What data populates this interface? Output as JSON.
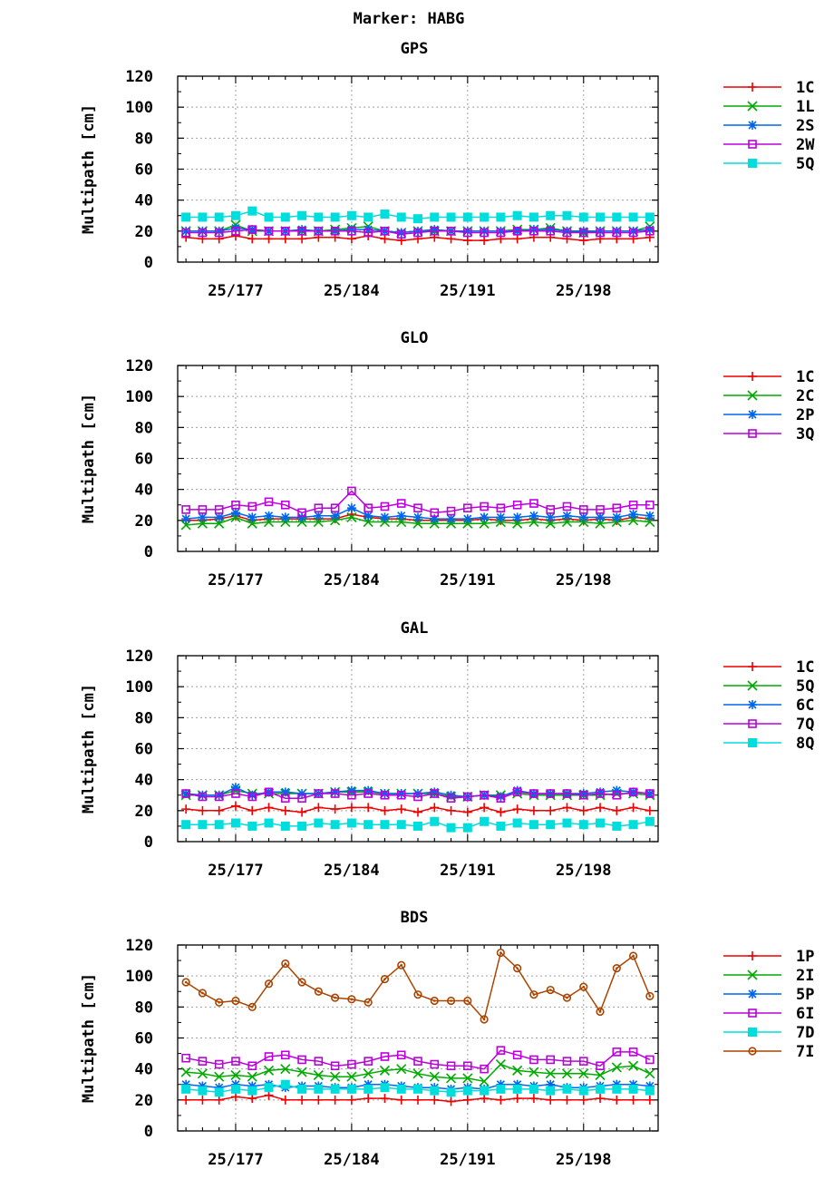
{
  "title": "Marker: HABG",
  "colors": {
    "1C": "#ee0000",
    "1P": "#ee0000",
    "1L": "#00aa00",
    "2C": "#00aa00",
    "5Q": "#00aa00",
    "2I": "#00aa00",
    "2S": "#0066ee",
    "2P": "#0066ee",
    "6C": "#0066ee",
    "5P": "#0066ee",
    "2W": "#bb00dd",
    "3Q": "#bb00dd",
    "7Q": "#bb00dd",
    "6I": "#bb00dd",
    "cyan": "#00dddd",
    "brown": "#aa4400"
  },
  "chart_data": [
    {
      "type": "line",
      "title": "GPS",
      "ylabel": "Multipath [cm]",
      "ylim": [
        0,
        120
      ],
      "yticks": [
        0,
        20,
        40,
        60,
        80,
        100,
        120
      ],
      "xlim": [
        173.5,
        202.5
      ],
      "xticks": [
        177,
        184,
        191,
        198
      ],
      "xtick_labels": [
        "25/177",
        "25/184",
        "25/191",
        "25/198"
      ],
      "grid": true,
      "legend": "right",
      "x": [
        174,
        175,
        176,
        177,
        178,
        179,
        180,
        181,
        182,
        183,
        184,
        185,
        186,
        187,
        188,
        189,
        190,
        191,
        192,
        193,
        194,
        195,
        196,
        197,
        198,
        199,
        200,
        201,
        202
      ],
      "series": [
        {
          "name": "1C",
          "color": "#ee0000",
          "marker": "plus",
          "values": [
            16,
            15,
            15,
            17,
            15,
            15,
            15,
            15,
            16,
            16,
            15,
            17,
            15,
            14,
            15,
            16,
            15,
            14,
            14,
            15,
            15,
            16,
            16,
            15,
            14,
            15,
            15,
            15,
            16
          ]
        },
        {
          "name": "1L",
          "color": "#00aa00",
          "marker": "x",
          "values": [
            20,
            20,
            20,
            24,
            20,
            20,
            20,
            20,
            20,
            21,
            22,
            23,
            20,
            19,
            20,
            20,
            20,
            20,
            20,
            20,
            21,
            21,
            22,
            20,
            19,
            20,
            20,
            20,
            23
          ]
        },
        {
          "name": "2S",
          "color": "#0066ee",
          "marker": "star",
          "values": [
            20,
            20,
            20,
            22,
            21,
            20,
            20,
            21,
            20,
            20,
            21,
            21,
            20,
            19,
            20,
            21,
            20,
            20,
            20,
            20,
            20,
            21,
            21,
            20,
            20,
            20,
            20,
            20,
            21
          ]
        },
        {
          "name": "2W",
          "color": "#bb00dd",
          "marker": "square",
          "values": [
            19,
            19,
            19,
            20,
            21,
            20,
            20,
            20,
            20,
            20,
            20,
            19,
            20,
            18,
            19,
            20,
            20,
            19,
            19,
            19,
            20,
            20,
            20,
            19,
            19,
            19,
            19,
            19,
            20
          ]
        },
        {
          "name": "5Q",
          "color": "#00dddd",
          "marker": "fsquare",
          "values": [
            29,
            29,
            29,
            30,
            33,
            29,
            29,
            30,
            29,
            29,
            30,
            29,
            31,
            29,
            28,
            29,
            29,
            29,
            29,
            29,
            30,
            29,
            30,
            30,
            29,
            29,
            29,
            29,
            29
          ]
        }
      ]
    },
    {
      "type": "line",
      "title": "GLO",
      "ylabel": "Multipath [cm]",
      "ylim": [
        0,
        120
      ],
      "yticks": [
        0,
        20,
        40,
        60,
        80,
        100,
        120
      ],
      "xlim": [
        173.5,
        202.5
      ],
      "xticks": [
        177,
        184,
        191,
        198
      ],
      "xtick_labels": [
        "25/177",
        "25/184",
        "25/191",
        "25/198"
      ],
      "grid": true,
      "legend": "right",
      "x": [
        174,
        175,
        176,
        177,
        178,
        179,
        180,
        181,
        182,
        183,
        184,
        185,
        186,
        187,
        188,
        189,
        190,
        191,
        192,
        193,
        194,
        195,
        196,
        197,
        198,
        199,
        200,
        201,
        202
      ],
      "series": [
        {
          "name": "1C",
          "color": "#ee0000",
          "marker": "plus",
          "values": [
            20,
            20,
            21,
            23,
            20,
            21,
            21,
            21,
            21,
            21,
            24,
            22,
            21,
            21,
            20,
            20,
            20,
            20,
            21,
            20,
            20,
            21,
            20,
            21,
            20,
            21,
            20,
            22,
            21
          ]
        },
        {
          "name": "2C",
          "color": "#00aa00",
          "marker": "x",
          "values": [
            17,
            18,
            18,
            22,
            18,
            19,
            19,
            19,
            19,
            20,
            22,
            19,
            19,
            19,
            18,
            18,
            18,
            18,
            18,
            19,
            18,
            19,
            18,
            19,
            19,
            18,
            19,
            20,
            19
          ]
        },
        {
          "name": "2P",
          "color": "#0066ee",
          "marker": "star",
          "values": [
            21,
            22,
            22,
            25,
            22,
            23,
            22,
            22,
            23,
            23,
            28,
            23,
            22,
            23,
            22,
            21,
            21,
            21,
            22,
            22,
            22,
            23,
            22,
            23,
            22,
            22,
            22,
            24,
            23
          ]
        },
        {
          "name": "3Q",
          "color": "#bb00dd",
          "marker": "square",
          "values": [
            27,
            27,
            27,
            30,
            29,
            32,
            30,
            25,
            28,
            28,
            39,
            28,
            29,
            31,
            28,
            25,
            26,
            28,
            29,
            28,
            30,
            31,
            27,
            29,
            27,
            27,
            28,
            30,
            30
          ]
        }
      ]
    },
    {
      "type": "line",
      "title": "GAL",
      "ylabel": "Multipath [cm]",
      "ylim": [
        0,
        120
      ],
      "yticks": [
        0,
        20,
        40,
        60,
        80,
        100,
        120
      ],
      "xlim": [
        173.5,
        202.5
      ],
      "xticks": [
        177,
        184,
        191,
        198
      ],
      "xtick_labels": [
        "25/177",
        "25/184",
        "25/191",
        "25/198"
      ],
      "grid": true,
      "legend": "right",
      "x": [
        174,
        175,
        176,
        177,
        178,
        179,
        180,
        181,
        182,
        183,
        184,
        185,
        186,
        187,
        188,
        189,
        190,
        191,
        192,
        193,
        194,
        195,
        196,
        197,
        198,
        199,
        200,
        201,
        202
      ],
      "series": [
        {
          "name": "1C",
          "color": "#ee0000",
          "marker": "plus",
          "values": [
            21,
            20,
            20,
            23,
            20,
            22,
            20,
            19,
            22,
            21,
            22,
            22,
            20,
            21,
            19,
            22,
            20,
            19,
            22,
            19,
            21,
            20,
            20,
            22,
            20,
            22,
            20,
            22,
            20
          ]
        },
        {
          "name": "5Q",
          "color": "#00aa00",
          "marker": "x",
          "values": [
            30,
            30,
            30,
            33,
            31,
            31,
            31,
            31,
            31,
            32,
            32,
            32,
            31,
            31,
            31,
            31,
            29,
            29,
            30,
            30,
            31,
            30,
            30,
            30,
            30,
            30,
            31,
            31,
            30
          ]
        },
        {
          "name": "6C",
          "color": "#0066ee",
          "marker": "star",
          "values": [
            31,
            30,
            30,
            35,
            30,
            32,
            32,
            31,
            31,
            32,
            33,
            33,
            31,
            31,
            31,
            32,
            30,
            29,
            30,
            29,
            33,
            31,
            31,
            31,
            31,
            32,
            33,
            32,
            31
          ]
        },
        {
          "name": "7Q",
          "color": "#bb00dd",
          "marker": "square",
          "values": [
            31,
            29,
            29,
            31,
            29,
            32,
            28,
            28,
            31,
            31,
            30,
            31,
            30,
            30,
            29,
            31,
            28,
            29,
            30,
            28,
            32,
            31,
            31,
            31,
            30,
            31,
            30,
            32,
            31
          ]
        },
        {
          "name": "8Q",
          "color": "#00dddd",
          "marker": "fsquare",
          "values": [
            11,
            11,
            11,
            12,
            10,
            12,
            10,
            10,
            12,
            11,
            12,
            11,
            11,
            11,
            10,
            13,
            9,
            9,
            13,
            10,
            12,
            11,
            11,
            12,
            11,
            12,
            10,
            11,
            13
          ]
        }
      ]
    },
    {
      "type": "line",
      "title": "BDS",
      "ylabel": "Multipath [cm]",
      "ylim": [
        0,
        120
      ],
      "yticks": [
        0,
        20,
        40,
        60,
        80,
        100,
        120
      ],
      "xlim": [
        173.5,
        202.5
      ],
      "xticks": [
        177,
        184,
        191,
        198
      ],
      "xtick_labels": [
        "25/177",
        "25/184",
        "25/191",
        "25/198"
      ],
      "grid": true,
      "legend": "right",
      "x": [
        174,
        175,
        176,
        177,
        178,
        179,
        180,
        181,
        182,
        183,
        184,
        185,
        186,
        187,
        188,
        189,
        190,
        191,
        192,
        193,
        194,
        195,
        196,
        197,
        198,
        199,
        200,
        201,
        202
      ],
      "series": [
        {
          "name": "1P",
          "color": "#ee0000",
          "marker": "plus",
          "values": [
            20,
            20,
            20,
            22,
            21,
            23,
            20,
            20,
            20,
            20,
            20,
            21,
            21,
            20,
            20,
            20,
            19,
            20,
            21,
            20,
            21,
            21,
            20,
            20,
            20,
            21,
            20,
            20,
            20
          ]
        },
        {
          "name": "2I",
          "color": "#00aa00",
          "marker": "x",
          "values": [
            38,
            37,
            35,
            36,
            35,
            39,
            40,
            38,
            36,
            35,
            35,
            37,
            39,
            40,
            37,
            35,
            34,
            34,
            32,
            43,
            39,
            38,
            37,
            37,
            37,
            36,
            41,
            42,
            37
          ]
        },
        {
          "name": "5P",
          "color": "#0066ee",
          "marker": "star",
          "values": [
            30,
            29,
            28,
            30,
            29,
            30,
            28,
            29,
            29,
            28,
            28,
            30,
            30,
            29,
            28,
            28,
            27,
            28,
            27,
            30,
            30,
            29,
            30,
            28,
            28,
            29,
            30,
            30,
            29
          ]
        },
        {
          "name": "6I",
          "color": "#bb00dd",
          "marker": "square",
          "values": [
            47,
            45,
            43,
            45,
            42,
            48,
            49,
            46,
            45,
            42,
            43,
            45,
            48,
            49,
            45,
            43,
            42,
            42,
            40,
            52,
            49,
            46,
            46,
            45,
            45,
            42,
            51,
            51,
            46
          ]
        },
        {
          "name": "7D",
          "color": "#00dddd",
          "marker": "fsquare",
          "values": [
            27,
            26,
            25,
            27,
            26,
            28,
            30,
            27,
            27,
            27,
            27,
            27,
            28,
            27,
            27,
            26,
            25,
            26,
            26,
            27,
            27,
            27,
            26,
            27,
            26,
            27,
            27,
            27,
            26
          ]
        },
        {
          "name": "7I",
          "color": "#aa4400",
          "marker": "circle",
          "values": [
            96,
            89,
            83,
            84,
            80,
            95,
            108,
            96,
            90,
            86,
            85,
            83,
            98,
            107,
            88,
            84,
            84,
            84,
            72,
            115,
            105,
            88,
            91,
            86,
            93,
            77,
            105,
            113,
            87
          ]
        }
      ]
    }
  ]
}
